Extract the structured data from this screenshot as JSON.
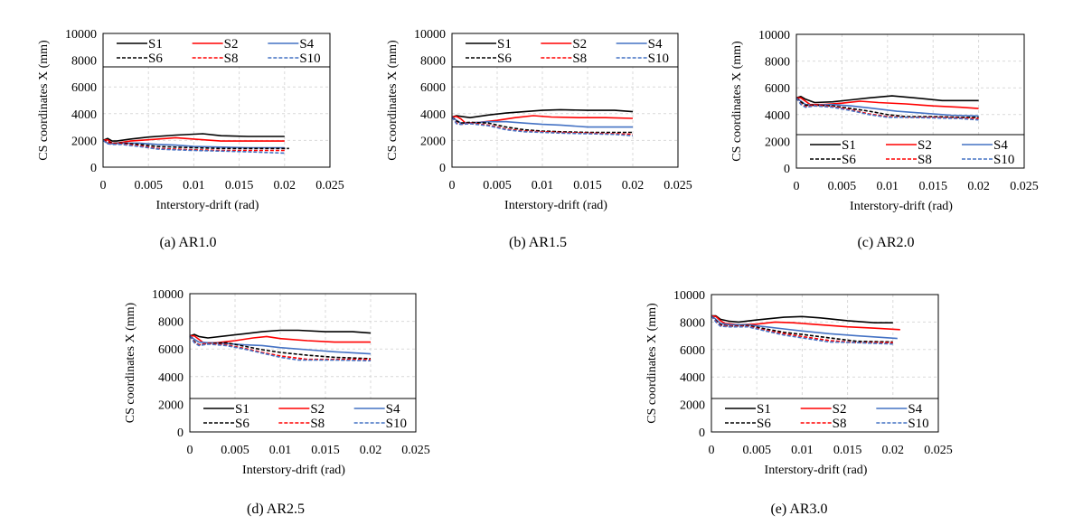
{
  "series_style": {
    "S1": {
      "color": "#000000",
      "dash": false
    },
    "S2": {
      "color": "#ff0000",
      "dash": false
    },
    "S4": {
      "color": "#4472c4",
      "dash": false
    },
    "S6": {
      "color": "#000000",
      "dash": true
    },
    "S8": {
      "color": "#ff0000",
      "dash": true
    },
    "S10": {
      "color": "#4472c4",
      "dash": true
    }
  },
  "chart_data": [
    {
      "type": "line",
      "caption": "(a) AR1.0",
      "xlabel": "Interstory-drift  (rad)",
      "ylabel": "CS coordinates  X (mm)",
      "xlim": [
        0,
        0.025
      ],
      "ylim": [
        0,
        10000
      ],
      "xticks": [
        "0",
        "0.005",
        "0.01",
        "0.015",
        "0.02",
        "0.025"
      ],
      "yticks": [
        "0",
        "2000",
        "4000",
        "6000",
        "8000",
        "10000"
      ],
      "grid": true,
      "legend": "top",
      "series": [
        {
          "name": "S1",
          "x": [
            0,
            0.0005,
            0.001,
            0.0015,
            0.003,
            0.005,
            0.008,
            0.011,
            0.013,
            0.016,
            0.02
          ],
          "y": [
            2000,
            2150,
            1950,
            1950,
            2100,
            2250,
            2400,
            2500,
            2350,
            2300,
            2300
          ]
        },
        {
          "name": "S2",
          "x": [
            0,
            0.0005,
            0.001,
            0.0015,
            0.003,
            0.005,
            0.008,
            0.01,
            0.013,
            0.016,
            0.02
          ],
          "y": [
            2000,
            2050,
            1800,
            1800,
            1950,
            2050,
            2200,
            2100,
            1950,
            1950,
            1950
          ]
        },
        {
          "name": "S4",
          "x": [
            0,
            0.0005,
            0.001,
            0.002,
            0.004,
            0.006,
            0.008,
            0.01,
            0.013,
            0.016,
            0.02
          ],
          "y": [
            2000,
            1800,
            1750,
            1800,
            1800,
            1700,
            1650,
            1550,
            1500,
            1450,
            1450
          ]
        },
        {
          "name": "S6",
          "x": [
            0,
            0.0005,
            0.001,
            0.002,
            0.004,
            0.006,
            0.008,
            0.01,
            0.013,
            0.016,
            0.0205
          ],
          "y": [
            2000,
            1900,
            1800,
            1800,
            1700,
            1550,
            1500,
            1450,
            1400,
            1400,
            1400
          ]
        },
        {
          "name": "S8",
          "x": [
            0,
            0.0005,
            0.001,
            0.002,
            0.004,
            0.006,
            0.008,
            0.01,
            0.013,
            0.016,
            0.02
          ],
          "y": [
            2000,
            1850,
            1750,
            1750,
            1600,
            1400,
            1350,
            1300,
            1250,
            1250,
            1250
          ]
        },
        {
          "name": "S10",
          "x": [
            0,
            0.0005,
            0.001,
            0.002,
            0.004,
            0.006,
            0.008,
            0.01,
            0.013,
            0.016,
            0.02
          ],
          "y": [
            2000,
            1750,
            1700,
            1700,
            1550,
            1350,
            1300,
            1250,
            1200,
            1150,
            1050
          ]
        }
      ]
    },
    {
      "type": "line",
      "caption": "(b) AR1.5",
      "xlabel": "Interstory-drift  (rad)",
      "ylabel": "CS coordinates  X (mm)",
      "xlim": [
        0,
        0.025
      ],
      "ylim": [
        0,
        10000
      ],
      "xticks": [
        "0",
        "0.005",
        "0.01",
        "0.015",
        "0.02",
        "0.025"
      ],
      "yticks": [
        "0",
        "2000",
        "4000",
        "6000",
        "8000",
        "10000"
      ],
      "grid": true,
      "legend": "top",
      "series": [
        {
          "name": "S1",
          "x": [
            0,
            0.0005,
            0.001,
            0.002,
            0.004,
            0.006,
            0.008,
            0.01,
            0.012,
            0.015,
            0.018,
            0.02
          ],
          "y": [
            3750,
            3850,
            3800,
            3700,
            3900,
            4050,
            4150,
            4250,
            4300,
            4250,
            4250,
            4150
          ]
        },
        {
          "name": "S2",
          "x": [
            0,
            0.0005,
            0.001,
            0.0015,
            0.003,
            0.005,
            0.007,
            0.009,
            0.011,
            0.014,
            0.017,
            0.02
          ],
          "y": [
            3750,
            3800,
            3600,
            3300,
            3350,
            3500,
            3700,
            3850,
            3750,
            3700,
            3700,
            3650
          ]
        },
        {
          "name": "S4",
          "x": [
            0,
            0.0005,
            0.001,
            0.002,
            0.004,
            0.006,
            0.008,
            0.01,
            0.012,
            0.015,
            0.018,
            0.02
          ],
          "y": [
            3750,
            3500,
            3300,
            3300,
            3400,
            3400,
            3300,
            3200,
            3150,
            3000,
            3000,
            3000
          ]
        },
        {
          "name": "S6",
          "x": [
            0,
            0.0005,
            0.001,
            0.002,
            0.004,
            0.006,
            0.008,
            0.01,
            0.012,
            0.015,
            0.018,
            0.02
          ],
          "y": [
            3750,
            3450,
            3300,
            3350,
            3300,
            3000,
            2800,
            2700,
            2650,
            2600,
            2600,
            2600
          ]
        },
        {
          "name": "S8",
          "x": [
            0,
            0.0005,
            0.001,
            0.002,
            0.004,
            0.006,
            0.008,
            0.01,
            0.012,
            0.015,
            0.018,
            0.02
          ],
          "y": [
            3750,
            3300,
            3200,
            3300,
            3150,
            2850,
            2700,
            2650,
            2600,
            2550,
            2500,
            2450
          ]
        },
        {
          "name": "S10",
          "x": [
            0,
            0.0005,
            0.001,
            0.002,
            0.004,
            0.006,
            0.008,
            0.01,
            0.012,
            0.015,
            0.018,
            0.02
          ],
          "y": [
            3750,
            3250,
            3200,
            3250,
            3100,
            2800,
            2650,
            2600,
            2550,
            2500,
            2450,
            2350
          ]
        }
      ]
    },
    {
      "type": "line",
      "caption": "(c) AR2.0",
      "xlabel": "Interstory-drift  (rad)",
      "ylabel": "CS coordinates  X (mm)",
      "xlim": [
        0,
        0.025
      ],
      "ylim": [
        0,
        10000
      ],
      "xticks": [
        "0",
        "0.005",
        "0.01",
        "0.015",
        "0.02",
        "0.025"
      ],
      "yticks": [
        "0",
        "2000",
        "4000",
        "6000",
        "8000",
        "10000"
      ],
      "grid": true,
      "legend": "bottom",
      "series": [
        {
          "name": "S1",
          "x": [
            0,
            0.0005,
            0.001,
            0.002,
            0.004,
            0.006,
            0.008,
            0.0105,
            0.013,
            0.016,
            0.02
          ],
          "y": [
            5250,
            5350,
            5150,
            4900,
            4950,
            5100,
            5250,
            5400,
            5250,
            5050,
            5050
          ]
        },
        {
          "name": "S2",
          "x": [
            0,
            0.0005,
            0.001,
            0.0015,
            0.003,
            0.005,
            0.007,
            0.009,
            0.012,
            0.015,
            0.018,
            0.02
          ],
          "y": [
            5250,
            5250,
            5000,
            4750,
            4750,
            4850,
            5000,
            4900,
            4800,
            4650,
            4550,
            4450
          ]
        },
        {
          "name": "S4",
          "x": [
            0,
            0.0005,
            0.001,
            0.002,
            0.004,
            0.006,
            0.008,
            0.011,
            0.014,
            0.017,
            0.02
          ],
          "y": [
            5250,
            5000,
            4750,
            4700,
            4750,
            4650,
            4500,
            4250,
            4100,
            3950,
            3900
          ]
        },
        {
          "name": "S6",
          "x": [
            0,
            0.0005,
            0.001,
            0.002,
            0.004,
            0.006,
            0.008,
            0.01,
            0.012,
            0.015,
            0.018,
            0.02
          ],
          "y": [
            5250,
            4950,
            4700,
            4700,
            4650,
            4450,
            4250,
            4000,
            3850,
            3850,
            3800,
            3800
          ]
        },
        {
          "name": "S8",
          "x": [
            0,
            0.0005,
            0.001,
            0.002,
            0.004,
            0.006,
            0.008,
            0.01,
            0.012,
            0.015,
            0.018,
            0.02
          ],
          "y": [
            5250,
            4800,
            4600,
            4700,
            4600,
            4350,
            4050,
            3850,
            3800,
            3800,
            3750,
            3700
          ]
        },
        {
          "name": "S10",
          "x": [
            0,
            0.0005,
            0.001,
            0.002,
            0.004,
            0.006,
            0.008,
            0.01,
            0.012,
            0.015,
            0.018,
            0.02
          ],
          "y": [
            5250,
            4750,
            4550,
            4650,
            4550,
            4300,
            4000,
            3800,
            3800,
            3750,
            3700,
            3600
          ]
        }
      ]
    },
    {
      "type": "line",
      "caption": "(d) AR2.5",
      "xlabel": "Interstory-drift  (rad)",
      "ylabel": "CS coordinates  X (mm)",
      "xlim": [
        0,
        0.025
      ],
      "ylim": [
        0,
        10000
      ],
      "xticks": [
        "0",
        "0.005",
        "0.01",
        "0.015",
        "0.02",
        "0.025"
      ],
      "yticks": [
        "0",
        "2000",
        "4000",
        "6000",
        "8000",
        "10000"
      ],
      "grid": true,
      "legend": "bottom",
      "series": [
        {
          "name": "S1",
          "x": [
            0,
            0.0005,
            0.001,
            0.002,
            0.004,
            0.006,
            0.008,
            0.01,
            0.012,
            0.015,
            0.018,
            0.02
          ],
          "y": [
            6950,
            7050,
            6900,
            6800,
            6950,
            7100,
            7250,
            7350,
            7350,
            7250,
            7250,
            7150
          ]
        },
        {
          "name": "S2",
          "x": [
            0,
            0.0005,
            0.001,
            0.0015,
            0.003,
            0.005,
            0.007,
            0.0085,
            0.01,
            0.013,
            0.016,
            0.02
          ],
          "y": [
            6950,
            6950,
            6700,
            6450,
            6450,
            6600,
            6800,
            6900,
            6750,
            6600,
            6500,
            6500
          ]
        },
        {
          "name": "S4",
          "x": [
            0,
            0.0005,
            0.001,
            0.002,
            0.004,
            0.006,
            0.008,
            0.01,
            0.013,
            0.016,
            0.02
          ],
          "y": [
            6950,
            6700,
            6500,
            6450,
            6400,
            6300,
            6250,
            6100,
            5950,
            5800,
            5650
          ]
        },
        {
          "name": "S6",
          "x": [
            0,
            0.0005,
            0.001,
            0.002,
            0.004,
            0.006,
            0.008,
            0.01,
            0.013,
            0.016,
            0.02
          ],
          "y": [
            6950,
            6550,
            6300,
            6400,
            6450,
            6200,
            5950,
            5750,
            5550,
            5400,
            5300
          ]
        },
        {
          "name": "S8",
          "x": [
            0,
            0.0005,
            0.001,
            0.002,
            0.004,
            0.006,
            0.008,
            0.01,
            0.013,
            0.016,
            0.02
          ],
          "y": [
            6950,
            6500,
            6300,
            6400,
            6300,
            6050,
            5750,
            5500,
            5250,
            5250,
            5250
          ]
        },
        {
          "name": "S10",
          "x": [
            0,
            0.0005,
            0.001,
            0.002,
            0.004,
            0.006,
            0.008,
            0.01,
            0.012,
            0.016,
            0.02
          ],
          "y": [
            6950,
            6450,
            6250,
            6350,
            6250,
            6000,
            5700,
            5400,
            5200,
            5200,
            5150
          ]
        }
      ]
    },
    {
      "type": "line",
      "caption": "(e) AR3.0",
      "xlabel": "Interstory-drift  (rad)",
      "ylabel": "CS coordinates  X (mm)",
      "xlim": [
        0,
        0.025
      ],
      "ylim": [
        0,
        10000
      ],
      "xticks": [
        "0",
        "0.005",
        "0.01",
        "0.015",
        "0.02",
        "0.025"
      ],
      "yticks": [
        "0",
        "2000",
        "4000",
        "6000",
        "8000",
        "10000"
      ],
      "grid": true,
      "legend": "bottom",
      "series": [
        {
          "name": "S1",
          "x": [
            0,
            0.0005,
            0.001,
            0.002,
            0.003,
            0.005,
            0.008,
            0.01,
            0.012,
            0.015,
            0.018,
            0.02
          ],
          "y": [
            8450,
            8450,
            8200,
            8050,
            8000,
            8150,
            8350,
            8400,
            8300,
            8100,
            7950,
            7950
          ]
        },
        {
          "name": "S2",
          "x": [
            0,
            0.0005,
            0.001,
            0.0015,
            0.003,
            0.005,
            0.007,
            0.009,
            0.012,
            0.015,
            0.018,
            0.0208
          ],
          "y": [
            8450,
            8400,
            8100,
            7900,
            7800,
            7850,
            8000,
            7950,
            7800,
            7650,
            7550,
            7450
          ]
        },
        {
          "name": "S4",
          "x": [
            0,
            0.0005,
            0.001,
            0.002,
            0.004,
            0.006,
            0.008,
            0.01,
            0.013,
            0.016,
            0.0205
          ],
          "y": [
            8450,
            8200,
            7900,
            7800,
            7800,
            7650,
            7500,
            7350,
            7150,
            7000,
            6800
          ]
        },
        {
          "name": "S6",
          "x": [
            0,
            0.0005,
            0.001,
            0.002,
            0.004,
            0.006,
            0.008,
            0.01,
            0.013,
            0.016,
            0.02
          ],
          "y": [
            8450,
            8100,
            7800,
            7700,
            7750,
            7500,
            7250,
            7100,
            6850,
            6600,
            6550
          ]
        },
        {
          "name": "S8",
          "x": [
            0,
            0.0005,
            0.001,
            0.002,
            0.004,
            0.006,
            0.008,
            0.01,
            0.013,
            0.016,
            0.02
          ],
          "y": [
            8450,
            8050,
            7750,
            7700,
            7700,
            7400,
            7150,
            6950,
            6650,
            6500,
            6500
          ]
        },
        {
          "name": "S10",
          "x": [
            0,
            0.0005,
            0.001,
            0.002,
            0.004,
            0.006,
            0.008,
            0.01,
            0.013,
            0.016,
            0.02
          ],
          "y": [
            8450,
            8000,
            7700,
            7650,
            7650,
            7350,
            7050,
            6850,
            6550,
            6500,
            6400
          ]
        }
      ]
    }
  ]
}
